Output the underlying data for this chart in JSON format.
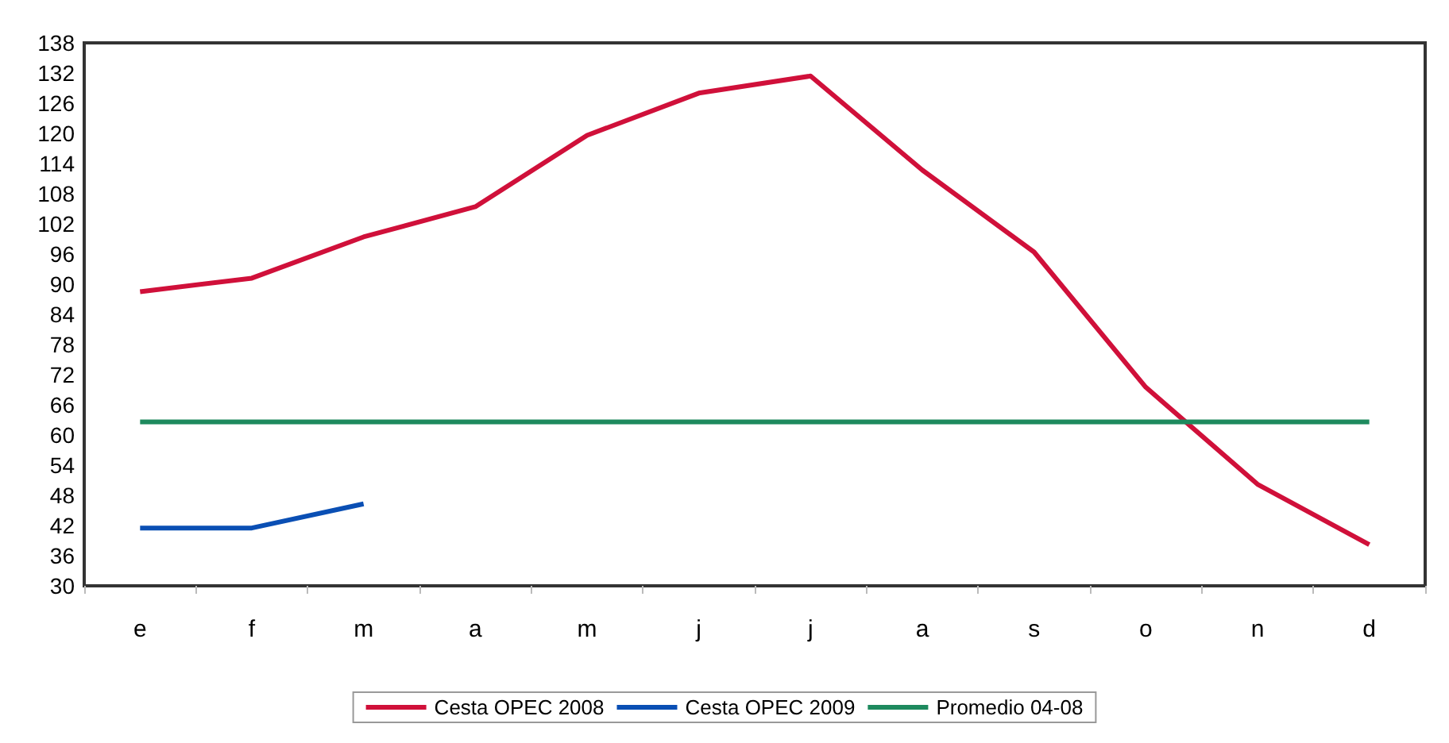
{
  "chart_data": {
    "type": "line",
    "categories": [
      "e",
      "f",
      "m",
      "a",
      "m",
      "j",
      "j",
      "a",
      "s",
      "o",
      "n",
      "d"
    ],
    "series": [
      {
        "name": "Cesta OPEC 2008",
        "color": "#d0103a",
        "values": [
          88.5,
          91.2,
          99.4,
          105.4,
          119.6,
          128,
          131.4,
          112.7,
          96.4,
          69.5,
          50.2,
          38.2
        ]
      },
      {
        "name": "Cesta OPEC 2009",
        "color": "#0a4fb4",
        "values": [
          41.5,
          41.5,
          46.3,
          null,
          null,
          null,
          null,
          null,
          null,
          null,
          null,
          null
        ]
      },
      {
        "name": "Promedio 04-08",
        "color": "#1e8a5e",
        "values": [
          62.6,
          62.6,
          62.6,
          62.6,
          62.6,
          62.6,
          62.6,
          62.6,
          62.6,
          62.6,
          62.6,
          62.6
        ]
      }
    ],
    "ylim": [
      30,
      138
    ],
    "yticks": [
      30,
      36,
      42,
      48,
      54,
      60,
      66,
      72,
      78,
      84,
      90,
      96,
      102,
      108,
      114,
      120,
      126,
      132,
      138
    ],
    "grid": false,
    "legend": "bottom",
    "marker": "none",
    "line_style": "solid"
  }
}
